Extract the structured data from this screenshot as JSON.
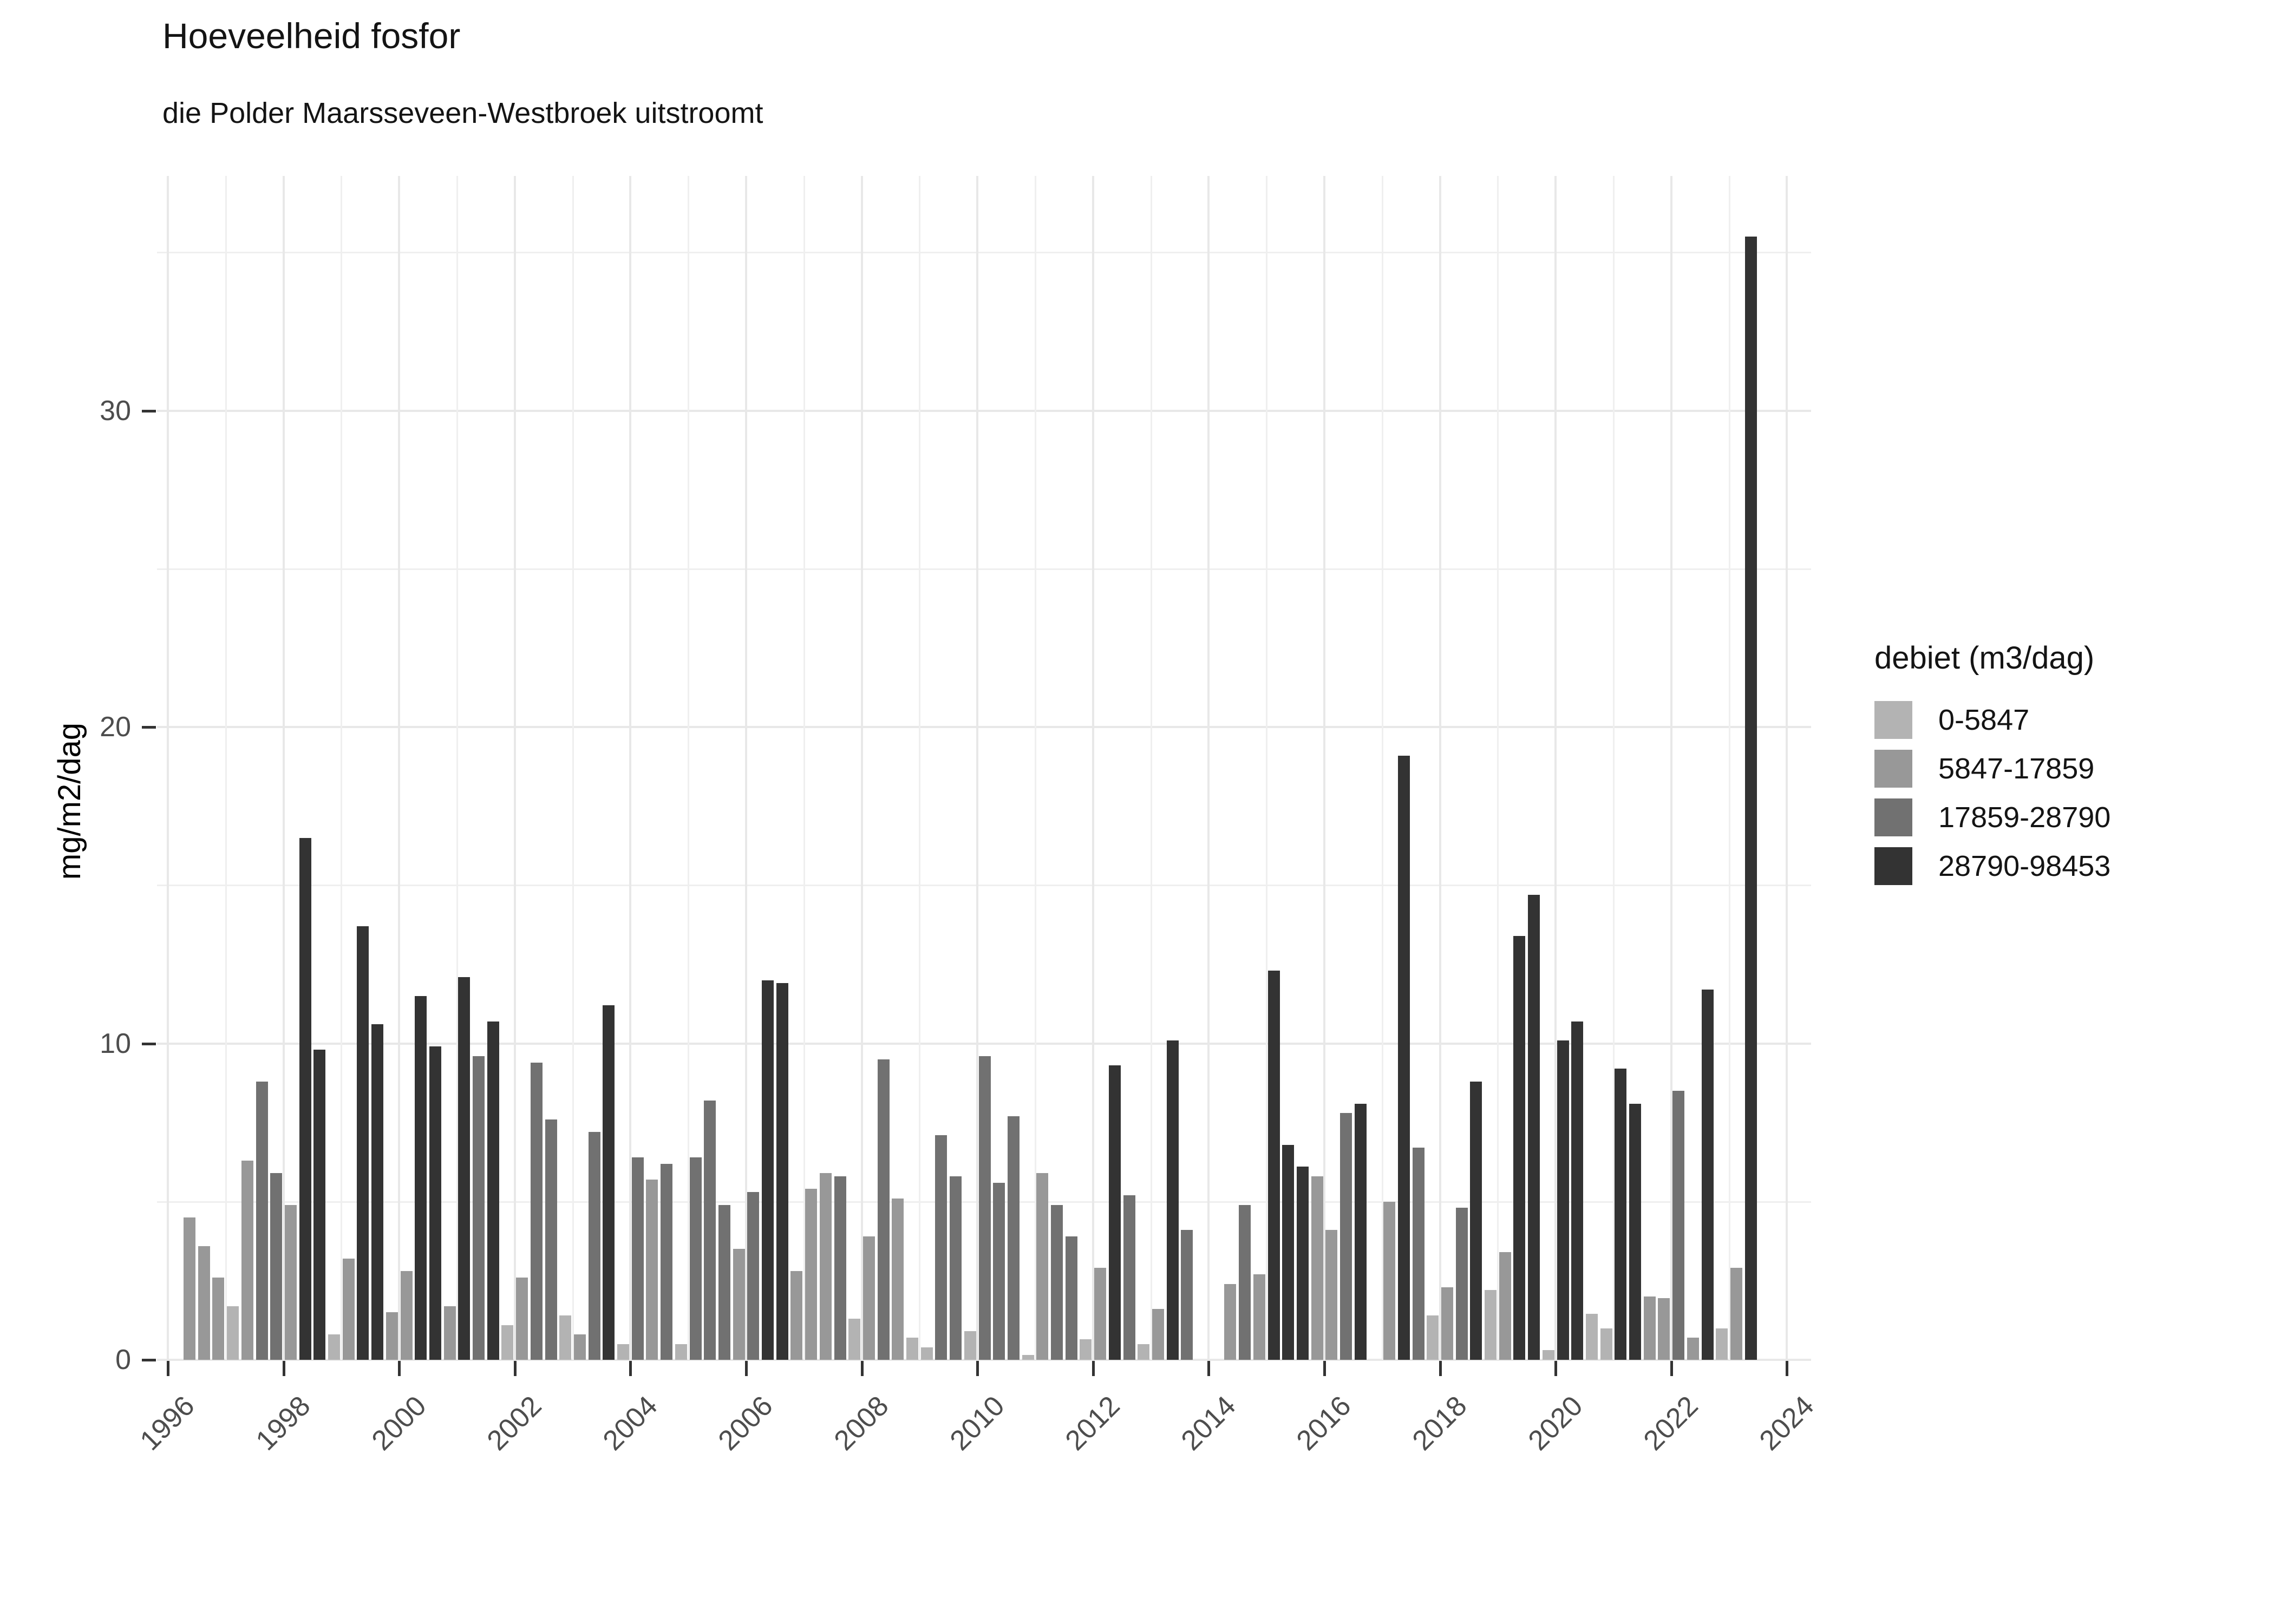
{
  "title": "Hoeveelheid fosfor",
  "subtitle": "die Polder Maarsseveen-Westbroek uitstroomt",
  "y_axis": {
    "label": "mg/m2/dag",
    "major_ticks": [
      0,
      10,
      20,
      30
    ],
    "minor_gridlines": [
      5,
      15,
      25,
      35
    ]
  },
  "x_axis": {
    "tick_years": [
      1996,
      1998,
      2000,
      2002,
      2004,
      2006,
      2008,
      2010,
      2012,
      2014,
      2016,
      2018,
      2020,
      2022,
      2024
    ],
    "first_year": 1996,
    "last_year": 2024
  },
  "legend": {
    "title": "debiet (m3/dag)",
    "items": [
      {
        "label": "0-5847",
        "color": "#b3b3b3"
      },
      {
        "label": "5847-17859",
        "color": "#989898"
      },
      {
        "label": "17859-28790",
        "color": "#717171"
      },
      {
        "label": "28790-98453",
        "color": "#333333"
      }
    ]
  },
  "chart_data": {
    "type": "bar",
    "title": "Hoeveelheid fosfor",
    "subtitle": "die Polder Maarsseveen-Westbroek uitstroomt",
    "ylabel": "mg/m2/dag",
    "ylim": [
      0,
      37.4
    ],
    "grid": "on",
    "legend_position": "right",
    "series_label": "debiet (m3/dag)",
    "debiet_classes": [
      "0-5847",
      "5847-17859",
      "17859-28790",
      "28790-98453"
    ],
    "bars_columns": [
      "year",
      "quarter",
      "debiet_class_index",
      "value_mg_m2_dag"
    ],
    "bars": [
      [
        1996,
        2,
        1,
        4.5
      ],
      [
        1996,
        3,
        1,
        3.6
      ],
      [
        1996,
        4,
        1,
        2.6
      ],
      [
        1997,
        1,
        0,
        1.7
      ],
      [
        1997,
        2,
        1,
        6.3
      ],
      [
        1997,
        3,
        2,
        8.8
      ],
      [
        1997,
        4,
        2,
        5.9
      ],
      [
        1998,
        1,
        1,
        4.9
      ],
      [
        1998,
        2,
        3,
        16.5
      ],
      [
        1998,
        3,
        3,
        9.8
      ],
      [
        1998,
        4,
        0,
        0.8
      ],
      [
        1999,
        1,
        1,
        3.2
      ],
      [
        1999,
        2,
        3,
        13.7
      ],
      [
        1999,
        3,
        3,
        10.6
      ],
      [
        1999,
        4,
        1,
        1.5
      ],
      [
        2000,
        1,
        1,
        2.8
      ],
      [
        2000,
        2,
        3,
        11.5
      ],
      [
        2000,
        3,
        3,
        9.9
      ],
      [
        2000,
        4,
        1,
        1.7
      ],
      [
        2001,
        1,
        3,
        12.1
      ],
      [
        2001,
        2,
        2,
        9.6
      ],
      [
        2001,
        3,
        3,
        10.7
      ],
      [
        2001,
        4,
        0,
        1.1
      ],
      [
        2002,
        1,
        1,
        2.6
      ],
      [
        2002,
        2,
        2,
        9.4
      ],
      [
        2002,
        3,
        2,
        7.6
      ],
      [
        2002,
        4,
        0,
        1.4
      ],
      [
        2003,
        1,
        1,
        0.8
      ],
      [
        2003,
        2,
        2,
        7.2
      ],
      [
        2003,
        3,
        3,
        11.2
      ],
      [
        2003,
        4,
        0,
        0.5
      ],
      [
        2004,
        1,
        2,
        6.4
      ],
      [
        2004,
        2,
        1,
        5.7
      ],
      [
        2004,
        3,
        2,
        6.2
      ],
      [
        2004,
        4,
        0,
        0.5
      ],
      [
        2005,
        1,
        2,
        6.4
      ],
      [
        2005,
        2,
        2,
        8.2
      ],
      [
        2005,
        3,
        2,
        4.9
      ],
      [
        2005,
        4,
        1,
        3.5
      ],
      [
        2006,
        1,
        2,
        5.3
      ],
      [
        2006,
        2,
        3,
        12
      ],
      [
        2006,
        3,
        3,
        11.9
      ],
      [
        2006,
        4,
        1,
        2.8
      ],
      [
        2007,
        1,
        1,
        5.4
      ],
      [
        2007,
        2,
        1,
        5.9
      ],
      [
        2007,
        3,
        2,
        5.8
      ],
      [
        2007,
        4,
        0,
        1.3
      ],
      [
        2008,
        1,
        1,
        3.9
      ],
      [
        2008,
        2,
        2,
        9.5
      ],
      [
        2008,
        3,
        1,
        5.1
      ],
      [
        2008,
        4,
        0,
        0.7
      ],
      [
        2009,
        1,
        0,
        0.4
      ],
      [
        2009,
        2,
        2,
        7.1
      ],
      [
        2009,
        3,
        2,
        5.8
      ],
      [
        2009,
        4,
        0,
        0.9
      ],
      [
        2010,
        1,
        2,
        9.6
      ],
      [
        2010,
        2,
        2,
        5.6
      ],
      [
        2010,
        3,
        2,
        7.7
      ],
      [
        2010,
        4,
        0,
        0.15
      ],
      [
        2011,
        1,
        1,
        5.9
      ],
      [
        2011,
        2,
        2,
        4.9
      ],
      [
        2011,
        3,
        2,
        3.9
      ],
      [
        2011,
        4,
        0,
        0.65
      ],
      [
        2012,
        1,
        1,
        2.9
      ],
      [
        2012,
        2,
        3,
        9.3
      ],
      [
        2012,
        3,
        2,
        5.2
      ],
      [
        2012,
        4,
        0,
        0.5
      ],
      [
        2013,
        1,
        1,
        1.6
      ],
      [
        2013,
        2,
        3,
        10.1
      ],
      [
        2013,
        3,
        2,
        4.1
      ],
      [
        2014,
        2,
        1,
        2.4
      ],
      [
        2014,
        3,
        2,
        4.9
      ],
      [
        2014,
        4,
        1,
        2.7
      ],
      [
        2015,
        1,
        3,
        12.3
      ],
      [
        2015,
        2,
        3,
        6.8
      ],
      [
        2015,
        3,
        3,
        6.1
      ],
      [
        2015,
        4,
        1,
        5.8
      ],
      [
        2016,
        1,
        1,
        4.1
      ],
      [
        2016,
        2,
        2,
        7.8
      ],
      [
        2016,
        3,
        3,
        8.1
      ],
      [
        2017,
        1,
        1,
        5.0
      ],
      [
        2017,
        2,
        3,
        19.1
      ],
      [
        2017,
        3,
        2,
        6.7
      ],
      [
        2017,
        4,
        0,
        1.4
      ],
      [
        2018,
        1,
        1,
        2.3
      ],
      [
        2018,
        2,
        2,
        4.8
      ],
      [
        2018,
        3,
        3,
        8.8
      ],
      [
        2018,
        4,
        0,
        2.2
      ],
      [
        2019,
        1,
        1,
        3.4
      ],
      [
        2019,
        2,
        3,
        13.4
      ],
      [
        2019,
        3,
        3,
        14.7
      ],
      [
        2019,
        4,
        0,
        0.3
      ],
      [
        2020,
        1,
        3,
        10.1
      ],
      [
        2020,
        2,
        3,
        10.7
      ],
      [
        2020,
        3,
        0,
        1.45
      ],
      [
        2020,
        4,
        0,
        1.0
      ],
      [
        2021,
        1,
        3,
        9.2
      ],
      [
        2021,
        2,
        3,
        8.1
      ],
      [
        2021,
        3,
        1,
        2.0
      ],
      [
        2021,
        4,
        1,
        1.95
      ],
      [
        2022,
        1,
        2,
        8.5
      ],
      [
        2022,
        2,
        1,
        0.7
      ],
      [
        2022,
        3,
        3,
        11.7
      ],
      [
        2022,
        4,
        0,
        1.0
      ],
      [
        2023,
        1,
        1,
        2.9
      ],
      [
        2023,
        2,
        3,
        35.5
      ]
    ]
  }
}
